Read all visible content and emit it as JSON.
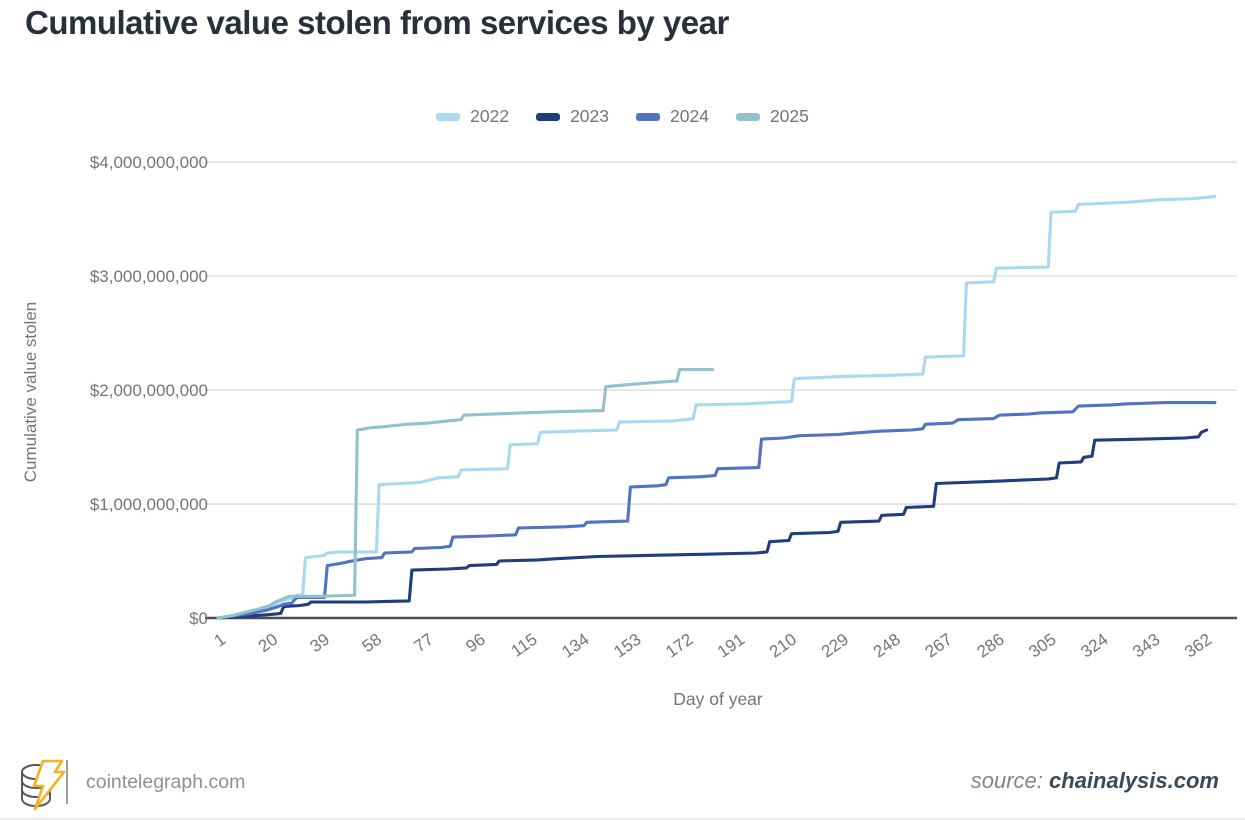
{
  "page": {
    "title": "Cumulative value stolen from services by year",
    "footer": {
      "site": "cointelegraph.com",
      "source_prefix": "source:",
      "source_name": "chainalysis.com",
      "logo_icon": "cointelegraph-coins-lightning-logo"
    }
  },
  "chart_data": {
    "type": "line",
    "subtype": "cumulative-step",
    "title": "Cumulative value stolen from services by year",
    "xlabel": "Day of year",
    "ylabel": "Cumulative value stolen",
    "grid": "horizontal",
    "legend_position": "top-center",
    "xlim_days": [
      1,
      366
    ],
    "ylim_usd_billions": [
      0,
      4
    ],
    "x_ticks_days": [
      1,
      20,
      39,
      58,
      77,
      96,
      115,
      134,
      153,
      172,
      191,
      210,
      229,
      248,
      267,
      286,
      305,
      324,
      343,
      362
    ],
    "y_ticks": [
      {
        "label": "$0",
        "value_billions": 0
      },
      {
        "label": "$1,000,000,000",
        "value_billions": 1
      },
      {
        "label": "$2,000,000,000",
        "value_billions": 2
      },
      {
        "label": "$3,000,000,000",
        "value_billions": 3
      },
      {
        "label": "$4,000,000,000",
        "value_billions": 4
      }
    ],
    "axis_color": "#4b4f54",
    "gridline_color": "#d9d9d9",
    "series": [
      {
        "name": "2022",
        "color": "#a9d9f1",
        "points_day_usd_billions": [
          [
            1,
            0
          ],
          [
            6,
            0.02
          ],
          [
            12,
            0.05
          ],
          [
            18,
            0.08
          ],
          [
            22,
            0.11
          ],
          [
            23,
            0.14
          ],
          [
            26,
            0.16
          ],
          [
            29,
            0.18
          ],
          [
            30,
            0.2
          ],
          [
            32,
            0.2
          ],
          [
            33,
            0.53
          ],
          [
            37,
            0.54
          ],
          [
            40,
            0.55
          ],
          [
            41,
            0.57
          ],
          [
            45,
            0.58
          ],
          [
            59,
            0.58
          ],
          [
            60,
            1.17
          ],
          [
            68,
            1.18
          ],
          [
            75,
            1.19
          ],
          [
            80,
            1.22
          ],
          [
            82,
            1.23
          ],
          [
            89,
            1.24
          ],
          [
            90,
            1.3
          ],
          [
            107,
            1.31
          ],
          [
            108,
            1.52
          ],
          [
            118,
            1.53
          ],
          [
            119,
            1.63
          ],
          [
            133,
            1.64
          ],
          [
            147,
            1.65
          ],
          [
            148,
            1.72
          ],
          [
            168,
            1.73
          ],
          [
            175,
            1.75
          ],
          [
            176,
            1.87
          ],
          [
            195,
            1.88
          ],
          [
            211,
            1.9
          ],
          [
            212,
            2.1
          ],
          [
            230,
            2.12
          ],
          [
            248,
            2.13
          ],
          [
            259,
            2.14
          ],
          [
            260,
            2.29
          ],
          [
            274,
            2.3
          ],
          [
            275,
            2.94
          ],
          [
            285,
            2.95
          ],
          [
            286,
            3.07
          ],
          [
            305,
            3.08
          ],
          [
            306,
            3.56
          ],
          [
            315,
            3.57
          ],
          [
            316,
            3.63
          ],
          [
            335,
            3.65
          ],
          [
            345,
            3.67
          ],
          [
            358,
            3.68
          ],
          [
            362,
            3.69
          ],
          [
            366,
            3.7
          ]
        ]
      },
      {
        "name": "2023",
        "color": "#203d7c",
        "points_day_usd_billions": [
          [
            1,
            0
          ],
          [
            8,
            0.01
          ],
          [
            14,
            0.02
          ],
          [
            20,
            0.03
          ],
          [
            24,
            0.04
          ],
          [
            25,
            0.1
          ],
          [
            31,
            0.11
          ],
          [
            34,
            0.12
          ],
          [
            35,
            0.14
          ],
          [
            55,
            0.14
          ],
          [
            71,
            0.15
          ],
          [
            72,
            0.42
          ],
          [
            85,
            0.43
          ],
          [
            92,
            0.44
          ],
          [
            93,
            0.46
          ],
          [
            103,
            0.47
          ],
          [
            104,
            0.5
          ],
          [
            118,
            0.51
          ],
          [
            125,
            0.52
          ],
          [
            140,
            0.54
          ],
          [
            160,
            0.55
          ],
          [
            180,
            0.56
          ],
          [
            198,
            0.57
          ],
          [
            202,
            0.58
          ],
          [
            203,
            0.67
          ],
          [
            210,
            0.68
          ],
          [
            211,
            0.74
          ],
          [
            225,
            0.75
          ],
          [
            228,
            0.76
          ],
          [
            229,
            0.84
          ],
          [
            243,
            0.85
          ],
          [
            244,
            0.9
          ],
          [
            252,
            0.91
          ],
          [
            253,
            0.97
          ],
          [
            263,
            0.98
          ],
          [
            264,
            1.18
          ],
          [
            285,
            1.2
          ],
          [
            305,
            1.22
          ],
          [
            308,
            1.23
          ],
          [
            309,
            1.36
          ],
          [
            317,
            1.37
          ],
          [
            318,
            1.41
          ],
          [
            321,
            1.42
          ],
          [
            322,
            1.56
          ],
          [
            340,
            1.57
          ],
          [
            355,
            1.58
          ],
          [
            360,
            1.59
          ],
          [
            361,
            1.63
          ],
          [
            363,
            1.65
          ]
        ]
      },
      {
        "name": "2024",
        "color": "#5273c2",
        "points_day_usd_billions": [
          [
            1,
            0
          ],
          [
            7,
            0.02
          ],
          [
            13,
            0.04
          ],
          [
            19,
            0.07
          ],
          [
            23,
            0.1
          ],
          [
            25,
            0.12
          ],
          [
            28,
            0.13
          ],
          [
            29,
            0.16
          ],
          [
            30,
            0.18
          ],
          [
            40,
            0.18
          ],
          [
            41,
            0.46
          ],
          [
            46,
            0.48
          ],
          [
            50,
            0.5
          ],
          [
            55,
            0.52
          ],
          [
            61,
            0.53
          ],
          [
            62,
            0.57
          ],
          [
            72,
            0.58
          ],
          [
            73,
            0.61
          ],
          [
            83,
            0.62
          ],
          [
            86,
            0.63
          ],
          [
            87,
            0.71
          ],
          [
            100,
            0.72
          ],
          [
            110,
            0.73
          ],
          [
            111,
            0.79
          ],
          [
            128,
            0.8
          ],
          [
            135,
            0.81
          ],
          [
            136,
            0.84
          ],
          [
            151,
            0.85
          ],
          [
            152,
            1.15
          ],
          [
            162,
            1.16
          ],
          [
            165,
            1.17
          ],
          [
            166,
            1.23
          ],
          [
            178,
            1.24
          ],
          [
            183,
            1.25
          ],
          [
            184,
            1.31
          ],
          [
            199,
            1.32
          ],
          [
            200,
            1.57
          ],
          [
            208,
            1.58
          ],
          [
            214,
            1.6
          ],
          [
            228,
            1.61
          ],
          [
            232,
            1.62
          ],
          [
            244,
            1.64
          ],
          [
            255,
            1.65
          ],
          [
            259,
            1.66
          ],
          [
            260,
            1.7
          ],
          [
            270,
            1.71
          ],
          [
            272,
            1.74
          ],
          [
            285,
            1.75
          ],
          [
            287,
            1.78
          ],
          [
            298,
            1.79
          ],
          [
            302,
            1.8
          ],
          [
            314,
            1.81
          ],
          [
            316,
            1.86
          ],
          [
            328,
            1.87
          ],
          [
            334,
            1.88
          ],
          [
            348,
            1.89
          ],
          [
            366,
            1.89
          ]
        ]
      },
      {
        "name": "2025",
        "color": "#93c0cd",
        "points_day_usd_billions": [
          [
            1,
            0
          ],
          [
            6,
            0.02
          ],
          [
            11,
            0.05
          ],
          [
            16,
            0.08
          ],
          [
            20,
            0.11
          ],
          [
            22,
            0.14
          ],
          [
            24,
            0.16
          ],
          [
            27,
            0.19
          ],
          [
            38,
            0.19
          ],
          [
            51,
            0.2
          ],
          [
            52,
            1.65
          ],
          [
            57,
            1.67
          ],
          [
            62,
            1.68
          ],
          [
            70,
            1.7
          ],
          [
            78,
            1.71
          ],
          [
            85,
            1.73
          ],
          [
            90,
            1.74
          ],
          [
            91,
            1.78
          ],
          [
            102,
            1.79
          ],
          [
            112,
            1.8
          ],
          [
            124,
            1.81
          ],
          [
            142,
            1.82
          ],
          [
            143,
            2.03
          ],
          [
            152,
            2.05
          ],
          [
            163,
            2.07
          ],
          [
            169,
            2.08
          ],
          [
            170,
            2.18
          ],
          [
            182,
            2.18
          ]
        ]
      }
    ]
  }
}
